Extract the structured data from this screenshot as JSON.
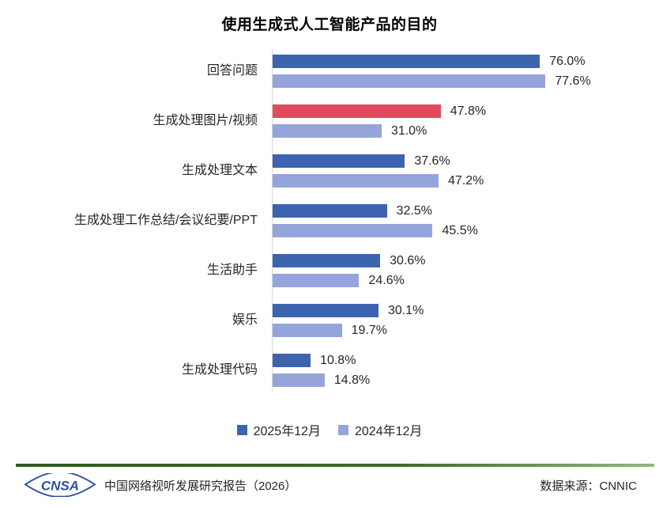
{
  "title": "使用生成式人工智能产品的目的",
  "chart_data": {
    "type": "bar",
    "orientation": "horizontal",
    "categories": [
      "回答问题",
      "生成处理图片/视频",
      "生成处理文本",
      "生成处理工作总结/会议纪要/PPT",
      "生活助手",
      "娱乐",
      "生成处理代码"
    ],
    "series": [
      {
        "name": "2025年12月",
        "color": "#3d64ae",
        "values": [
          76.0,
          47.8,
          37.6,
          32.5,
          30.6,
          30.1,
          10.8
        ]
      },
      {
        "name": "2024年12月",
        "color": "#95a4db",
        "values": [
          77.6,
          31.0,
          47.2,
          45.5,
          24.6,
          19.7,
          14.8
        ]
      }
    ],
    "highlight": {
      "series_index": 0,
      "category_index": 1,
      "color": "#e04b5f"
    },
    "value_suffix": "%",
    "value_decimals": 1,
    "xlim": [
      0,
      100
    ],
    "grid": false,
    "legend_position": "bottom"
  },
  "legend": {
    "items": [
      {
        "label": "2025年12月",
        "color": "#3d64ae"
      },
      {
        "label": "2024年12月",
        "color": "#95a4db"
      }
    ]
  },
  "footer": {
    "logo_text": "CNSA",
    "logo_color": "#2b4fa3",
    "report_title": "中国网络视听发展研究报告（2026）",
    "source": "数据来源：CNNIC",
    "rule_color": "#3c6b27"
  }
}
